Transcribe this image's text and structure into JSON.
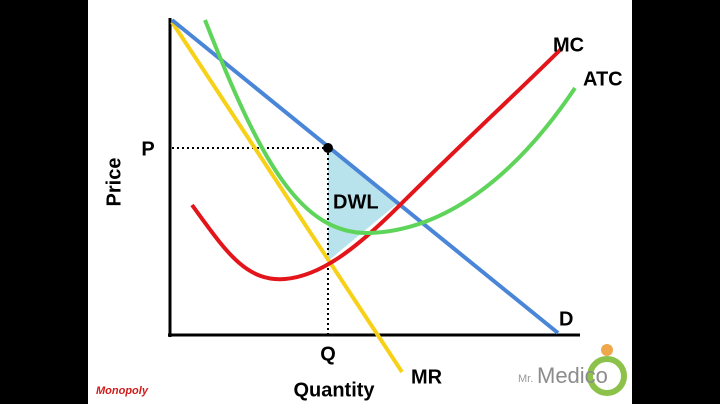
{
  "diagram": {
    "y_axis_label": "Price",
    "x_axis_label": "Quantity",
    "price_label": "P",
    "quantity_label": "Q",
    "curves": {
      "mc": "MC",
      "atc": "ATC",
      "demand": "D",
      "mr": "MR"
    },
    "area_label": "DWL",
    "caption": "Monopoly"
  },
  "logo": {
    "prefix": "Mr.",
    "name": "Medico"
  }
}
